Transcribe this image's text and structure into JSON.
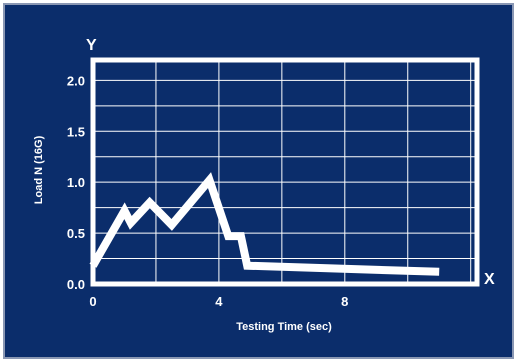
{
  "chart_data": {
    "type": "line",
    "title": "",
    "xlabel": "Testing Time (sec)",
    "ylabel": "Load N  (16G)",
    "x_axis_letter": "X",
    "y_axis_letter": "Y",
    "xlim": [
      0,
      12.2
    ],
    "ylim": [
      0,
      2.2
    ],
    "x_tick_labels": [
      "0",
      "4",
      "8"
    ],
    "x_ticks": [
      0,
      4,
      8
    ],
    "y_tick_labels": [
      "0.0",
      "0.5",
      "1.0",
      "1.5",
      "2.0"
    ],
    "y_ticks": [
      0,
      0.5,
      1.0,
      1.5,
      2.0
    ],
    "grid": true,
    "background_color": "#0b2d6b",
    "line_color": "#ffffff",
    "series": [
      {
        "x": [
          0,
          1.0,
          1.2,
          1.8,
          2.5,
          3.7,
          4.3,
          4.7,
          4.9,
          11.0
        ],
        "y": [
          0.18,
          0.72,
          0.6,
          0.8,
          0.58,
          1.02,
          0.47,
          0.47,
          0.18,
          0.12
        ]
      }
    ]
  }
}
